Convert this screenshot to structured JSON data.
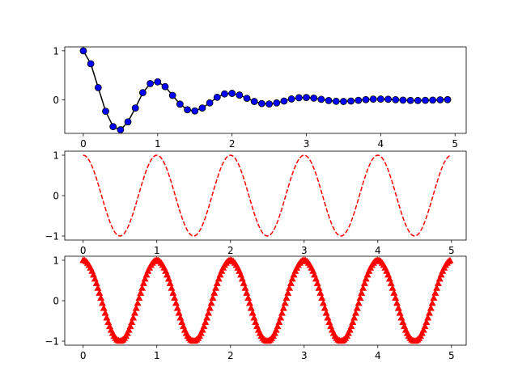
{
  "chart_data": [
    {
      "type": "line",
      "title": "",
      "xlabel": "",
      "ylabel": "",
      "xlim": [
        -0.25,
        5.15
      ],
      "ylim": [
        -0.68,
        1.08
      ],
      "xticks": [
        0,
        1,
        2,
        3,
        4,
        5
      ],
      "yticks": [
        0,
        1
      ],
      "xtick_labels": [
        "0",
        "1",
        "2",
        "3",
        "4",
        "5"
      ],
      "ytick_labels": [
        "0",
        "1"
      ],
      "grid": false,
      "series": [
        {
          "style": "black solid line with blue circle markers",
          "line_color": "#000000",
          "marker_color": "#0000ff",
          "x": [
            0.0,
            0.1,
            0.2,
            0.3,
            0.4,
            0.5,
            0.6,
            0.7,
            0.8,
            0.9,
            1.0,
            1.1,
            1.2,
            1.3,
            1.4,
            1.5,
            1.6,
            1.7,
            1.8,
            1.9,
            2.0,
            2.1,
            2.2,
            2.3,
            2.4,
            2.5,
            2.6,
            2.7,
            2.8,
            2.9,
            3.0,
            3.1,
            3.2,
            3.3,
            3.4,
            3.5,
            3.6,
            3.7,
            3.8,
            3.9,
            4.0,
            4.1,
            4.2,
            4.3,
            4.4,
            4.5,
            4.6,
            4.7,
            4.8,
            4.9
          ],
          "y": [
            1.0,
            0.737,
            0.252,
            -0.23,
            -0.542,
            -0.607,
            -0.445,
            -0.164,
            0.149,
            0.333,
            0.368,
            0.271,
            0.093,
            -0.085,
            -0.199,
            -0.223,
            -0.164,
            -0.06,
            0.055,
            0.123,
            0.135,
            0.1,
            0.034,
            -0.031,
            -0.073,
            -0.082,
            -0.06,
            -0.022,
            0.02,
            0.045,
            0.05,
            0.037,
            0.013,
            -0.012,
            -0.027,
            -0.03,
            -0.022,
            -0.008,
            0.007,
            0.017,
            0.018,
            0.014,
            0.005,
            -0.004,
            -0.01,
            -0.011,
            -0.008,
            -0.003,
            0.003,
            0.006
          ]
        }
      ]
    },
    {
      "type": "line",
      "title": "",
      "xlabel": "",
      "ylabel": "",
      "xlim": [
        -0.25,
        5.2
      ],
      "ylim": [
        -1.1,
        1.1
      ],
      "xticks": [
        0,
        1,
        2,
        3,
        4,
        5
      ],
      "yticks": [
        -1,
        0,
        1
      ],
      "xtick_labels": [
        "0",
        "1",
        "2",
        "3",
        "4",
        "5"
      ],
      "ytick_labels": [
        "−1",
        "0",
        "1"
      ],
      "grid": false,
      "series": [
        {
          "style": "red dashed line",
          "line_color": "#ff0000",
          "function": "cos(2*pi*x)",
          "x_range": [
            0,
            5
          ],
          "step": 0.02
        }
      ]
    },
    {
      "type": "line",
      "title": "",
      "xlabel": "",
      "ylabel": "",
      "xlim": [
        -0.25,
        5.2
      ],
      "ylim": [
        -1.1,
        1.1
      ],
      "xticks": [
        0,
        1,
        2,
        3,
        4,
        5
      ],
      "yticks": [
        -1,
        0,
        1
      ],
      "xtick_labels": [
        "0",
        "1",
        "2",
        "3",
        "4",
        "5"
      ],
      "ytick_labels": [
        "−1",
        "0",
        "1"
      ],
      "grid": false,
      "series": [
        {
          "style": "red triangle-up markers",
          "marker_color": "#ff0000",
          "function": "cos(2*pi*x)",
          "x_range": [
            0,
            5
          ],
          "step": 0.02
        }
      ]
    }
  ]
}
